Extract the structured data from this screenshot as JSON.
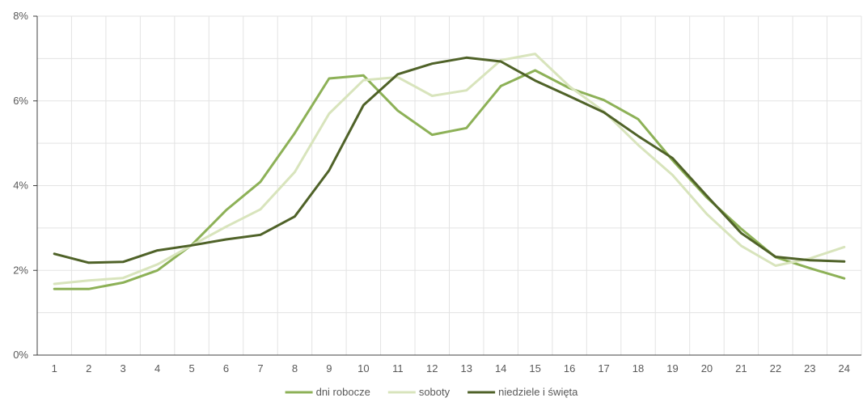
{
  "chart_data": {
    "type": "line",
    "title": "",
    "xlabel": "",
    "ylabel": "",
    "categories": [
      "1",
      "2",
      "3",
      "4",
      "5",
      "6",
      "7",
      "8",
      "9",
      "10",
      "11",
      "12",
      "13",
      "14",
      "15",
      "16",
      "17",
      "18",
      "19",
      "20",
      "21",
      "22",
      "23",
      "24"
    ],
    "ylim": [
      0,
      8
    ],
    "yticks": [
      "0%",
      "2%",
      "4%",
      "6%",
      "8%"
    ],
    "grid": true,
    "legend_position": "bottom",
    "series": [
      {
        "name": "dni robocze",
        "color": "#8db157",
        "values": [
          1.56,
          1.56,
          1.71,
          2.0,
          2.6,
          3.42,
          4.09,
          5.24,
          6.53,
          6.6,
          5.77,
          5.2,
          5.36,
          6.35,
          6.72,
          6.3,
          6.02,
          5.57,
          4.6,
          3.72,
          2.98,
          2.31,
          2.05,
          1.81
        ]
      },
      {
        "name": "soboty",
        "color": "#d8e4bc",
        "values": [
          1.68,
          1.76,
          1.82,
          2.14,
          2.59,
          3.03,
          3.44,
          4.32,
          5.7,
          6.49,
          6.56,
          6.12,
          6.25,
          6.96,
          7.11,
          6.34,
          5.75,
          4.96,
          4.25,
          3.33,
          2.58,
          2.11,
          2.28,
          2.55
        ]
      },
      {
        "name": "niedziele i święta",
        "color": "#4f6228",
        "values": [
          2.39,
          2.18,
          2.2,
          2.47,
          2.59,
          2.73,
          2.84,
          3.27,
          4.36,
          5.9,
          6.63,
          6.88,
          7.02,
          6.93,
          6.48,
          6.11,
          5.73,
          5.17,
          4.65,
          3.76,
          2.88,
          2.32,
          2.24,
          2.21
        ]
      }
    ]
  }
}
